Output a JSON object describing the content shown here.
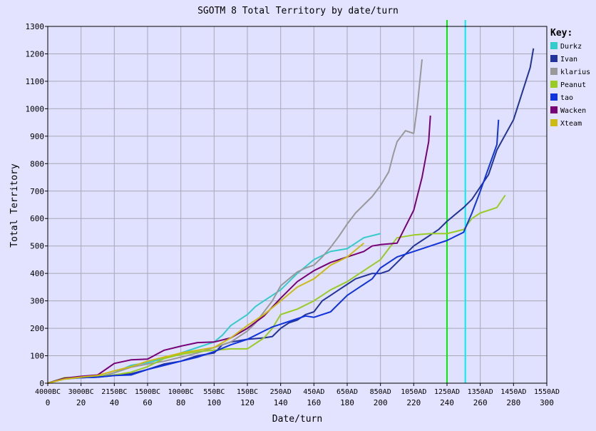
{
  "chart_data": {
    "type": "line",
    "title": "SGOTM 8 Total Territory by date/turn",
    "xlabel": "Date/turn",
    "ylabel": "Total Territory",
    "xlim": [
      0,
      300
    ],
    "ylim": [
      0,
      1300
    ],
    "grid": true,
    "legend_title": "Key:",
    "legend_position": "right",
    "y_ticks": [
      0,
      100,
      200,
      300,
      400,
      500,
      600,
      700,
      800,
      900,
      1000,
      1100,
      1200,
      1300
    ],
    "x_ticks_turn": [
      0,
      20,
      40,
      60,
      80,
      100,
      120,
      140,
      160,
      180,
      200,
      220,
      240,
      260,
      280,
      300
    ],
    "x_ticks_date": [
      "4000BC",
      "3000BC",
      "2150BC",
      "1500BC",
      "1000BC",
      "550BC",
      "150BC",
      "250AD",
      "450AD",
      "650AD",
      "850AD",
      "1050AD",
      "1250AD",
      "1350AD",
      "1450AD",
      "1550AD"
    ],
    "vertical_markers": [
      {
        "x": 240,
        "color": "#00ee00"
      },
      {
        "x": 251,
        "color": "#00eeee"
      }
    ],
    "series": [
      {
        "name": "Durkz",
        "color": "#33cccc",
        "x": [
          0,
          10,
          20,
          30,
          40,
          50,
          60,
          70,
          80,
          90,
          100,
          105,
          110,
          120,
          125,
          130,
          140,
          150,
          160,
          170,
          180,
          185,
          190,
          200
        ],
        "y": [
          0,
          15,
          20,
          22,
          38,
          65,
          75,
          90,
          110,
          130,
          150,
          175,
          210,
          250,
          280,
          300,
          340,
          400,
          450,
          480,
          490,
          510,
          530,
          545
        ]
      },
      {
        "name": "Ivan",
        "color": "#223399",
        "x": [
          0,
          10,
          20,
          30,
          40,
          50,
          60,
          70,
          80,
          90,
          100,
          105,
          110,
          120,
          130,
          135,
          140,
          145,
          150,
          155,
          160,
          165,
          170,
          175,
          180,
          185,
          190,
          195,
          200,
          205,
          210,
          215,
          220,
          225,
          230,
          235,
          240,
          250,
          255,
          265,
          270,
          280,
          290,
          292
        ],
        "y": [
          0,
          18,
          20,
          22,
          28,
          34,
          50,
          70,
          80,
          100,
          110,
          140,
          150,
          160,
          165,
          170,
          200,
          220,
          230,
          250,
          260,
          300,
          320,
          340,
          360,
          380,
          390,
          400,
          400,
          410,
          440,
          470,
          500,
          520,
          540,
          560,
          590,
          640,
          670,
          760,
          850,
          960,
          1150,
          1220
        ]
      },
      {
        "name": "klarius",
        "color": "#999999",
        "x": [
          0,
          10,
          20,
          30,
          40,
          50,
          60,
          70,
          80,
          90,
          100,
          110,
          120,
          125,
          130,
          135,
          140,
          145,
          150,
          155,
          160,
          165,
          170,
          175,
          180,
          185,
          190,
          195,
          200,
          205,
          208,
          210,
          215,
          220,
          222,
          225
        ],
        "y": [
          0,
          15,
          20,
          22,
          38,
          58,
          70,
          80,
          95,
          110,
          130,
          150,
          190,
          220,
          260,
          300,
          355,
          380,
          405,
          420,
          430,
          460,
          495,
          535,
          580,
          620,
          650,
          680,
          720,
          770,
          840,
          880,
          920,
          910,
          1000,
          1180
        ]
      },
      {
        "name": "Peanut",
        "color": "#99cc22",
        "x": [
          0,
          10,
          20,
          30,
          40,
          50,
          60,
          70,
          80,
          90,
          100,
          110,
          120,
          130,
          135,
          140,
          145,
          150,
          160,
          170,
          180,
          190,
          195,
          200,
          205,
          210,
          220,
          230,
          240,
          250,
          255,
          260,
          270,
          275
        ],
        "y": [
          0,
          20,
          22,
          25,
          30,
          40,
          60,
          90,
          105,
          115,
          120,
          125,
          125,
          165,
          200,
          250,
          260,
          270,
          300,
          340,
          370,
          410,
          430,
          450,
          490,
          530,
          540,
          545,
          545,
          560,
          600,
          620,
          640,
          685
        ]
      },
      {
        "name": "tao",
        "color": "#1133dd",
        "x": [
          0,
          10,
          20,
          30,
          40,
          50,
          60,
          70,
          80,
          90,
          100,
          110,
          120,
          125,
          130,
          135,
          140,
          145,
          150,
          155,
          160,
          170,
          175,
          180,
          190,
          195,
          200,
          210,
          220,
          230,
          240,
          250,
          255,
          260,
          270,
          271
        ],
        "y": [
          0,
          18,
          20,
          22,
          28,
          30,
          50,
          65,
          80,
          95,
          115,
          140,
          160,
          175,
          190,
          205,
          215,
          225,
          235,
          245,
          240,
          260,
          290,
          320,
          360,
          380,
          420,
          460,
          480,
          500,
          520,
          550,
          620,
          700,
          870,
          960
        ]
      },
      {
        "name": "Wacken",
        "color": "#770077",
        "x": [
          0,
          10,
          20,
          30,
          40,
          50,
          60,
          70,
          80,
          90,
          100,
          110,
          120,
          130,
          140,
          150,
          160,
          170,
          180,
          190,
          195,
          200,
          210,
          220,
          225,
          229,
          230
        ],
        "y": [
          0,
          18,
          25,
          30,
          72,
          85,
          88,
          120,
          135,
          148,
          150,
          165,
          200,
          245,
          310,
          370,
          410,
          440,
          460,
          480,
          500,
          505,
          510,
          630,
          750,
          880,
          975
        ]
      },
      {
        "name": "Xteam",
        "color": "#ccbb11",
        "x": [
          0,
          10,
          20,
          30,
          40,
          50,
          60,
          70,
          80,
          90,
          100,
          110,
          120,
          130,
          140,
          150,
          160,
          170,
          180,
          190
        ],
        "y": [
          0,
          15,
          22,
          28,
          45,
          60,
          80,
          95,
          110,
          120,
          130,
          165,
          210,
          250,
          300,
          350,
          380,
          430,
          460,
          510
        ]
      }
    ]
  }
}
